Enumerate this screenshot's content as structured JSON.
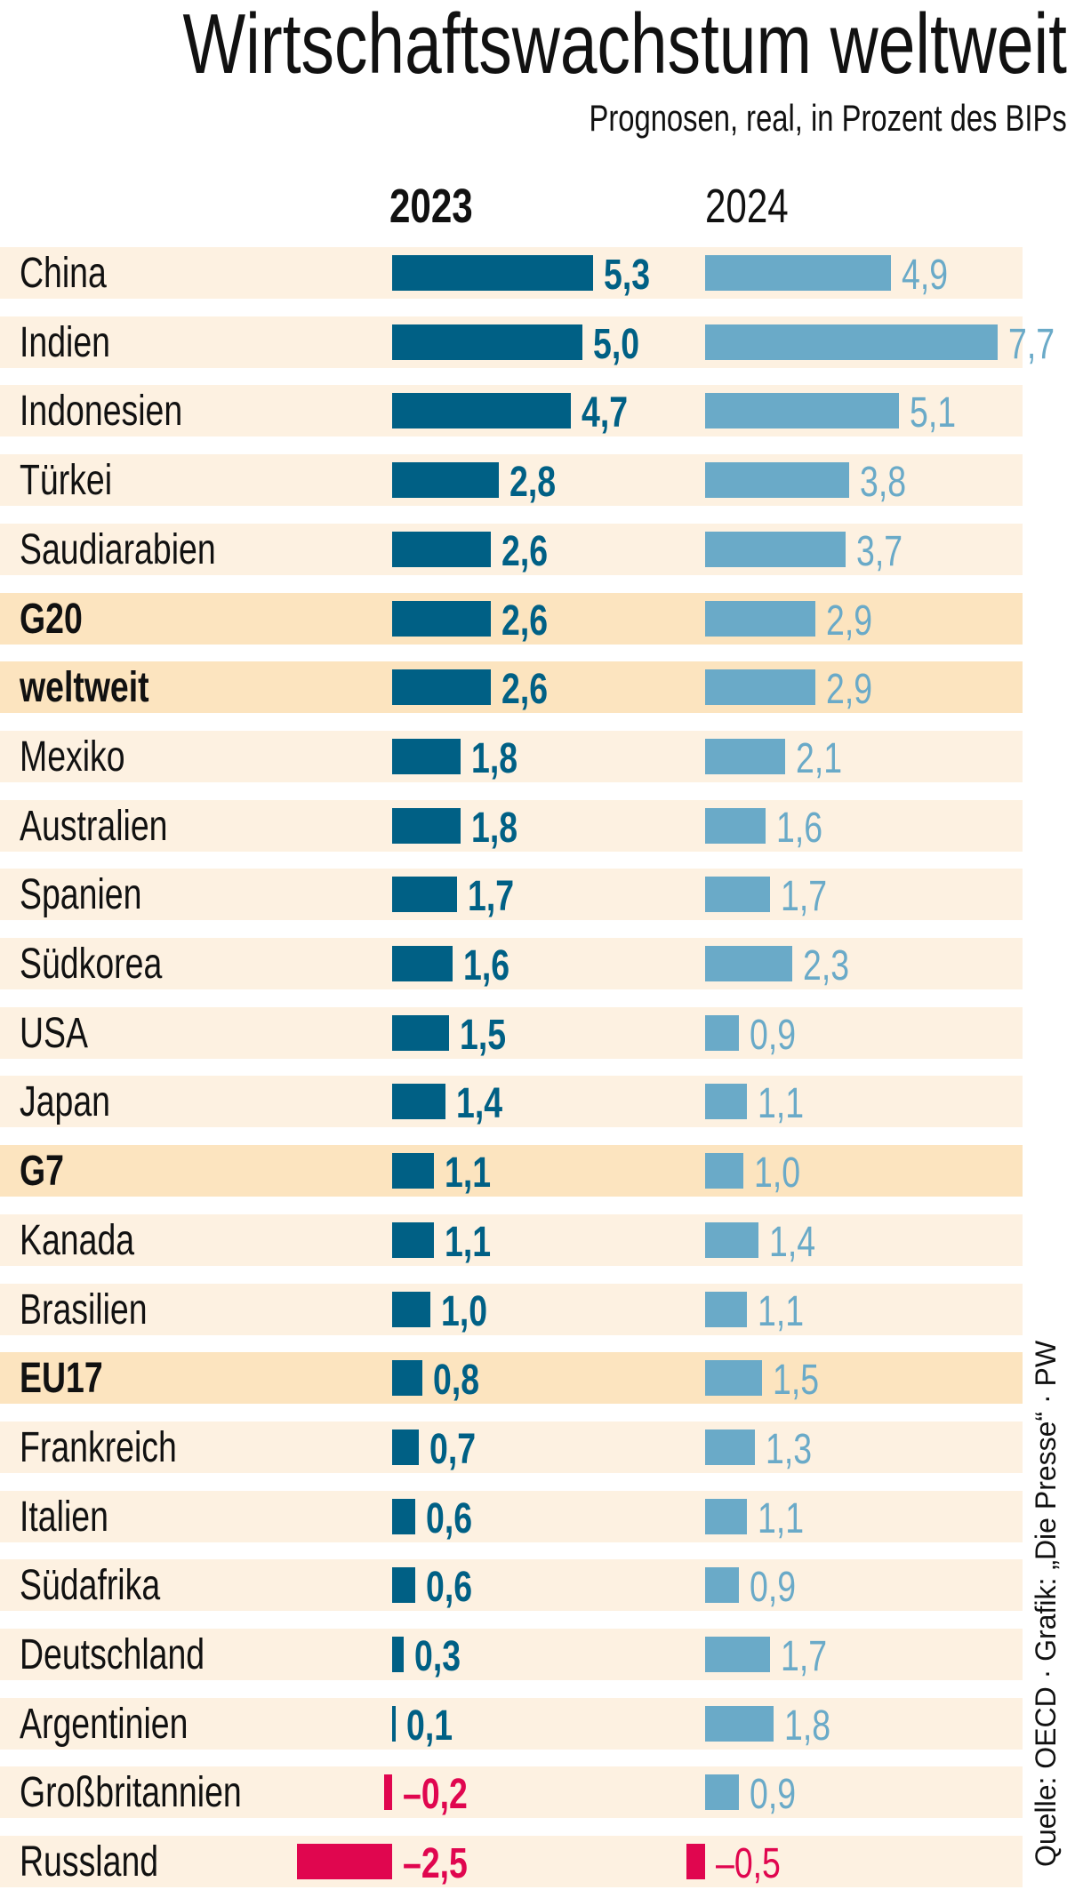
{
  "title": "Wirtschaftswachstum weltweit",
  "subtitle": "Prognosen, real, in Prozent des BIPs",
  "source": "Quelle: OECD · Grafik: „Die Presse“ · PW",
  "colors": {
    "y2023": "#006085",
    "y2024": "#6aaac8",
    "negative": "#e0064f",
    "row_bg": "#fdf1e1",
    "row_highlight": "#fce4bf"
  },
  "chart_data": {
    "type": "bar",
    "orientation": "horizontal",
    "title": "Wirtschaftswachstum weltweit",
    "subtitle": "Prognosen, real, in Prozent des BIPs",
    "categories": [
      "China",
      "Indien",
      "Indonesien",
      "Türkei",
      "Saudiarabien",
      "G20",
      "weltweit",
      "Mexiko",
      "Australien",
      "Spanien",
      "Südkorea",
      "USA",
      "Japan",
      "G7",
      "Kanada",
      "Brasilien",
      "EU17",
      "Frankreich",
      "Italien",
      "Südafrika",
      "Deutschland",
      "Argentinien",
      "Großbritannien",
      "Russland"
    ],
    "highlighted": [
      "G20",
      "weltweit",
      "G7",
      "EU17"
    ],
    "series": [
      {
        "name": "2023",
        "values": [
          5.3,
          5.0,
          4.7,
          2.8,
          2.6,
          2.6,
          2.6,
          1.8,
          1.8,
          1.7,
          1.6,
          1.5,
          1.4,
          1.1,
          1.1,
          1.0,
          0.8,
          0.7,
          0.6,
          0.6,
          0.3,
          0.1,
          -0.2,
          -2.5
        ],
        "labels": [
          "5,3",
          "5,0",
          "4,7",
          "2,8",
          "2,6",
          "2,6",
          "2,6",
          "1,8",
          "1,8",
          "1,7",
          "1,6",
          "1,5",
          "1,4",
          "1,1",
          "1,1",
          "1,0",
          "0,8",
          "0,7",
          "0,6",
          "0,6",
          "0,3",
          "0,1",
          "–0,2",
          "–2,5"
        ]
      },
      {
        "name": "2024",
        "values": [
          4.9,
          7.7,
          5.1,
          3.8,
          3.7,
          2.9,
          2.9,
          2.1,
          1.6,
          1.7,
          2.3,
          0.9,
          1.1,
          1.0,
          1.4,
          1.1,
          1.5,
          1.3,
          1.1,
          0.9,
          1.7,
          1.8,
          0.9,
          -0.5
        ],
        "labels": [
          "4,9",
          "7,7",
          "5,1",
          "3,8",
          "3,7",
          "2,9",
          "2,9",
          "2,1",
          "1,6",
          "1,7",
          "2,3",
          "0,9",
          "1,1",
          "1,0",
          "1,4",
          "1,1",
          "1,5",
          "1,3",
          "1,1",
          "0,9",
          "1,7",
          "1,8",
          "0,9",
          "–0,5"
        ]
      }
    ],
    "grid": false,
    "legend": "none"
  }
}
